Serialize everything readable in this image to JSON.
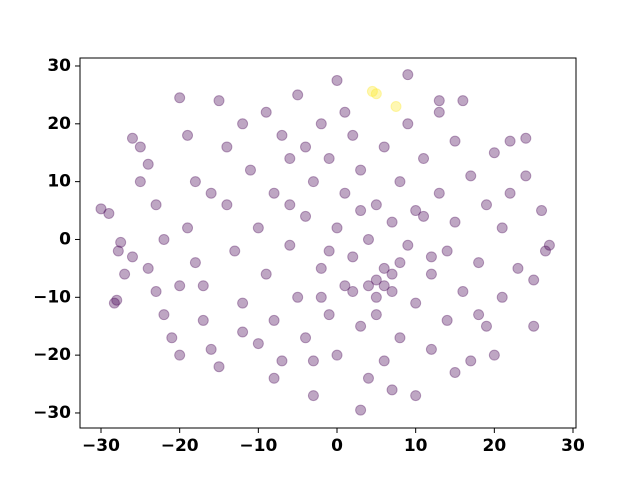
{
  "chart_data": {
    "type": "scatter",
    "alpha": 0.35,
    "xlim": [
      -32.67,
      30.38
    ],
    "ylim": [
      -32.6,
      31.38
    ],
    "xticks": [
      {
        "value": -30,
        "label": "−30"
      },
      {
        "value": -20,
        "label": "−20"
      },
      {
        "value": -10,
        "label": "−10"
      },
      0,
      10,
      20,
      30
    ],
    "yticks": [
      {
        "value": -30,
        "label": "−30"
      },
      {
        "value": -20,
        "label": "−20"
      },
      {
        "value": -10,
        "label": "−10"
      },
      0,
      10,
      20,
      30
    ],
    "series": [
      {
        "color": "#440154",
        "x": [
          -30,
          -29,
          -28,
          -28.3,
          -27.5,
          -27.8,
          -27,
          -26,
          -25,
          -24,
          -25,
          -26,
          -23,
          -22,
          -24,
          -23,
          -22,
          -21,
          -20,
          -20,
          -19,
          -18,
          -19,
          -18,
          -17,
          -17,
          -16,
          -15,
          -15,
          -14,
          -14,
          -13,
          -12,
          -12,
          -11,
          -10,
          -10,
          -9,
          -9,
          -8,
          -8,
          -7,
          -7,
          -6,
          -6,
          -5,
          -5,
          -4,
          -4,
          -3,
          -3,
          -2,
          -2,
          -1,
          -1,
          0,
          0,
          0,
          1,
          1,
          2,
          2,
          3,
          3,
          3,
          4,
          4,
          5,
          5,
          5,
          6,
          6,
          6,
          7,
          7,
          8,
          8,
          9,
          9,
          9,
          10,
          10,
          11,
          11,
          12,
          12,
          13,
          13,
          14,
          14,
          15,
          15,
          16,
          16,
          17,
          17,
          18,
          19,
          19,
          20,
          20,
          21,
          21,
          22,
          22,
          23,
          24,
          24,
          25,
          25,
          26,
          26.5,
          27,
          3,
          -1,
          2,
          4,
          6,
          5,
          7,
          8,
          -2,
          -4,
          -16,
          -20,
          12,
          10,
          -8,
          15,
          18,
          -12,
          -6,
          1,
          13,
          -3,
          7
        ],
        "y": [
          5.3,
          4.5,
          -10.5,
          -11,
          -0.5,
          -2,
          -6,
          -3,
          10,
          13,
          16,
          17.5,
          6,
          0,
          -5,
          -9,
          -13,
          -17,
          -20,
          24.5,
          18,
          10,
          2,
          -4,
          -8,
          -14,
          -19,
          -22,
          24,
          16,
          6,
          -2,
          -11,
          20,
          12,
          -18,
          2,
          22,
          -6,
          8,
          -14,
          18,
          -21,
          -1,
          14,
          -10,
          25,
          4,
          -17,
          -27,
          10,
          20,
          -5,
          -13,
          14,
          27.5,
          2,
          -20,
          8,
          -8,
          18,
          -3,
          -29.5,
          12,
          -15,
          -24,
          0,
          6,
          -7,
          -13,
          16,
          -5,
          -21,
          3,
          -9,
          10,
          -17,
          28.5,
          20,
          -1,
          -27,
          -11,
          14,
          4,
          -6,
          -19,
          22,
          8,
          -2,
          -14,
          17,
          3,
          -9,
          24,
          -21,
          11,
          -4,
          6,
          -15,
          15,
          -20,
          2,
          -10,
          17,
          8,
          -5,
          11,
          17.5,
          -15,
          -7,
          5,
          -2,
          -1,
          5,
          -2,
          -9,
          -8,
          -8,
          -10,
          -6,
          -4,
          -10,
          16,
          8,
          -8,
          -3,
          5,
          -24,
          -23,
          -13,
          -16,
          6,
          22,
          24,
          -21,
          -26
        ]
      },
      {
        "color": "#fde725",
        "x": [
          4.5,
          5,
          7.5
        ],
        "y": [
          25.6,
          25.2,
          23
        ]
      }
    ]
  }
}
